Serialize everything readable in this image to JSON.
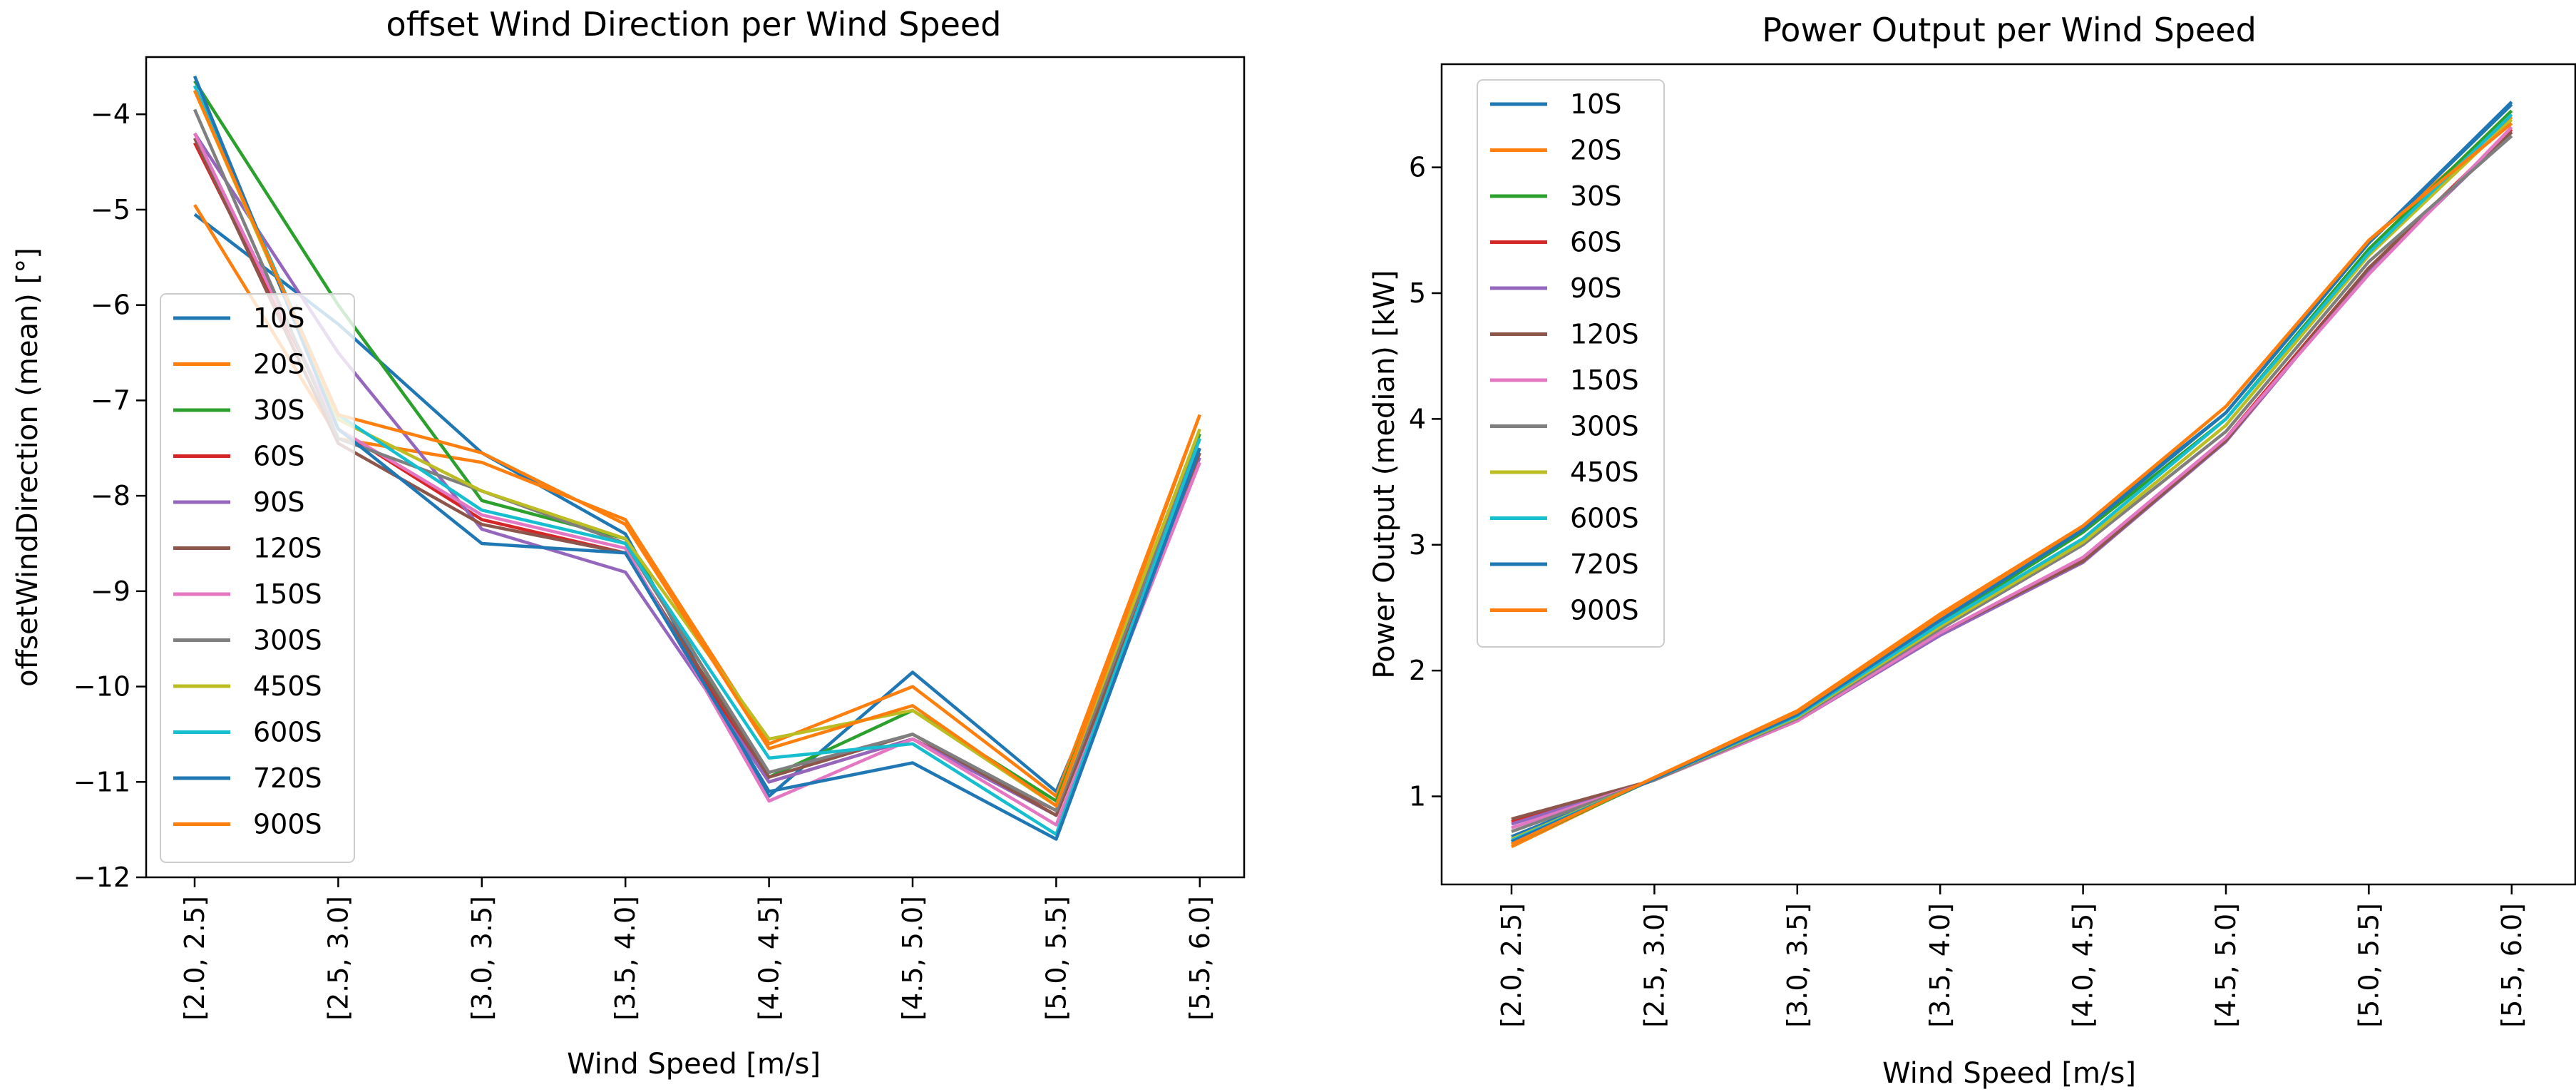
{
  "chart_data": [
    {
      "type": "line",
      "title": "offset Wind Direction per Wind Speed",
      "xlabel": "Wind Speed [m/s]",
      "ylabel": "offsetWindDirection (mean) [°]",
      "categories": [
        "[2.0, 2.5]",
        "[2.5, 3.0]",
        "[3.0, 3.5]",
        "[3.5, 4.0]",
        "[4.0, 4.5]",
        "[4.5, 5.0]",
        "[5.0, 5.5]",
        "[5.5, 6.0]"
      ],
      "ylim": [
        -12,
        -3.4
      ],
      "yticks": [
        -12,
        -11,
        -10,
        -9,
        -8,
        -7,
        -6,
        -5,
        -4
      ],
      "ytick_labels": [
        "−12",
        "−11",
        "−10",
        "−9",
        "−8",
        "−7",
        "−6",
        "−5",
        "−4"
      ],
      "grid": false,
      "legend_position": "center-left",
      "series": [
        {
          "name": "10S",
          "color": "#1f77b4",
          "values": [
            -5.05,
            -6.2,
            -7.55,
            -8.4,
            -11.15,
            -9.85,
            -11.1,
            -7.55
          ]
        },
        {
          "name": "20S",
          "color": "#ff7f0e",
          "values": [
            -4.95,
            -7.4,
            -7.65,
            -8.25,
            -10.6,
            -10.0,
            -11.15,
            -7.15
          ]
        },
        {
          "name": "30S",
          "color": "#2ca02c",
          "values": [
            -3.65,
            -6.0,
            -8.05,
            -8.45,
            -10.95,
            -10.25,
            -11.2,
            -7.35
          ]
        },
        {
          "name": "60S",
          "color": "#d62728",
          "values": [
            -4.3,
            -7.3,
            -8.25,
            -8.6,
            -11.0,
            -10.55,
            -11.3,
            -7.5
          ]
        },
        {
          "name": "90S",
          "color": "#9467bd",
          "values": [
            -4.2,
            -6.5,
            -8.35,
            -8.8,
            -11.0,
            -10.55,
            -11.35,
            -7.6
          ]
        },
        {
          "name": "120S",
          "color": "#8c564b",
          "values": [
            -4.25,
            -7.45,
            -8.3,
            -8.6,
            -10.95,
            -10.5,
            -11.35,
            -7.55
          ]
        },
        {
          "name": "150S",
          "color": "#e377c2",
          "values": [
            -4.2,
            -7.3,
            -8.2,
            -8.55,
            -11.2,
            -10.55,
            -11.45,
            -7.65
          ]
        },
        {
          "name": "300S",
          "color": "#7f7f7f",
          "values": [
            -3.95,
            -7.4,
            -7.95,
            -8.5,
            -10.9,
            -10.5,
            -11.3,
            -7.4
          ]
        },
        {
          "name": "450S",
          "color": "#bcbd22",
          "values": [
            -3.75,
            -7.2,
            -7.95,
            -8.45,
            -10.55,
            -10.25,
            -11.25,
            -7.3
          ]
        },
        {
          "name": "600S",
          "color": "#17becf",
          "values": [
            -3.7,
            -7.15,
            -8.15,
            -8.5,
            -10.75,
            -10.6,
            -11.55,
            -7.4
          ]
        },
        {
          "name": "720S",
          "color": "#1f77b4",
          "values": [
            -3.6,
            -7.3,
            -8.5,
            -8.6,
            -11.1,
            -10.8,
            -11.6,
            -7.5
          ]
        },
        {
          "name": "900S",
          "color": "#ff7f0e",
          "values": [
            -3.75,
            -7.15,
            -7.55,
            -8.3,
            -10.65,
            -10.2,
            -11.25,
            -7.15
          ]
        }
      ]
    },
    {
      "type": "line",
      "title": "Power Output per Wind Speed",
      "xlabel": "Wind Speed [m/s]",
      "ylabel": "Power Output (median) [kW]",
      "categories": [
        "[2.0, 2.5]",
        "[2.5, 3.0]",
        "[3.0, 3.5]",
        "[3.5, 4.0]",
        "[4.0, 4.5]",
        "[4.5, 5.0]",
        "[5.0, 5.5]",
        "[5.5, 6.0]"
      ],
      "ylim": [
        0.3,
        6.82
      ],
      "yticks": [
        1,
        2,
        3,
        4,
        5,
        6
      ],
      "ytick_labels": [
        "1",
        "2",
        "3",
        "4",
        "5",
        "6"
      ],
      "grid": false,
      "legend_position": "top-left",
      "series": [
        {
          "name": "10S",
          "color": "#1f77b4",
          "values": [
            0.68,
            1.14,
            1.62,
            2.35,
            3.15,
            4.05,
            5.4,
            6.52
          ]
        },
        {
          "name": "20S",
          "color": "#ff7f0e",
          "values": [
            0.6,
            1.15,
            1.68,
            2.45,
            3.15,
            4.1,
            5.42,
            6.4
          ]
        },
        {
          "name": "30S",
          "color": "#2ca02c",
          "values": [
            0.62,
            1.14,
            1.64,
            2.38,
            3.1,
            4.0,
            5.35,
            6.45
          ]
        },
        {
          "name": "60S",
          "color": "#d62728",
          "values": [
            0.8,
            1.13,
            1.6,
            2.3,
            2.88,
            3.85,
            5.2,
            6.3
          ]
        },
        {
          "name": "90S",
          "color": "#9467bd",
          "values": [
            0.78,
            1.13,
            1.6,
            2.28,
            2.86,
            3.82,
            5.18,
            6.28
          ]
        },
        {
          "name": "120S",
          "color": "#8c564b",
          "values": [
            0.82,
            1.13,
            1.6,
            2.3,
            2.87,
            3.83,
            5.2,
            6.28
          ]
        },
        {
          "name": "150S",
          "color": "#e377c2",
          "values": [
            0.75,
            1.13,
            1.6,
            2.3,
            2.9,
            3.85,
            5.15,
            6.32
          ]
        },
        {
          "name": "300S",
          "color": "#7f7f7f",
          "values": [
            0.72,
            1.13,
            1.62,
            2.33,
            3.0,
            3.9,
            5.25,
            6.25
          ]
        },
        {
          "name": "450S",
          "color": "#bcbd22",
          "values": [
            0.66,
            1.14,
            1.63,
            2.35,
            3.02,
            3.95,
            5.3,
            6.38
          ]
        },
        {
          "name": "600S",
          "color": "#17becf",
          "values": [
            0.65,
            1.14,
            1.64,
            2.37,
            3.05,
            4.0,
            5.32,
            6.42
          ]
        },
        {
          "name": "720S",
          "color": "#1f77b4",
          "values": [
            0.64,
            1.14,
            1.65,
            2.4,
            3.12,
            4.05,
            5.4,
            6.5
          ]
        },
        {
          "name": "900S",
          "color": "#ff7f0e",
          "values": [
            0.62,
            1.15,
            1.67,
            2.43,
            3.15,
            4.1,
            5.42,
            6.35
          ]
        }
      ]
    }
  ]
}
